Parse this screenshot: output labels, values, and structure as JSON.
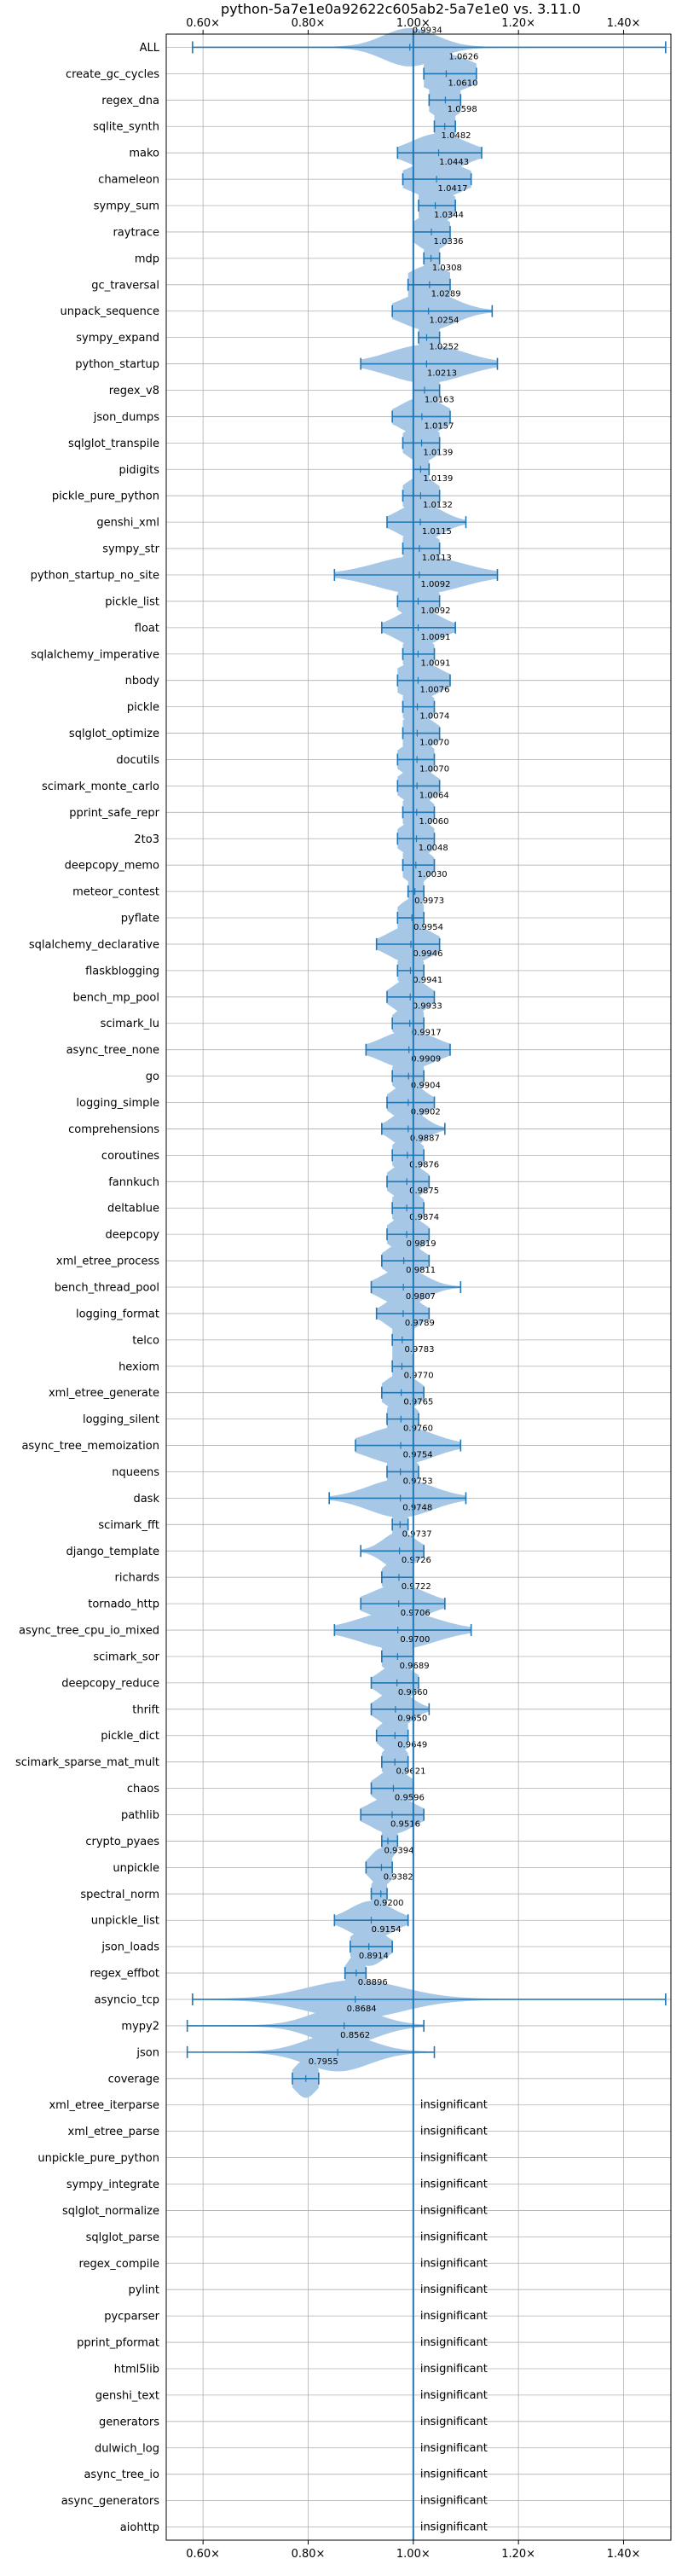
{
  "chart_data": {
    "type": "violin",
    "title": "python-5a7e1e0a92622c605ab2-5a7e1e0 vs. 3.11.0",
    "xlim": [
      0.53,
      1.49
    ],
    "x_ticks": [
      0.6,
      0.8,
      1.0,
      1.2,
      1.4
    ],
    "x_tick_labels": [
      "0.60×",
      "0.80×",
      "1.00×",
      "1.20×",
      "1.40×"
    ],
    "x_ticks_top_and_bottom": true,
    "grid": true,
    "reference_line": 1.0,
    "colors": {
      "violin": "#a6c8e6",
      "line": "#1f77b4",
      "grid": "#b0b0b0"
    },
    "insignificant_label": "insignificant",
    "benchmarks": [
      {
        "name": "ALL",
        "mean": 0.9934,
        "label": "0.9934",
        "min": 0.58,
        "max": 1.48,
        "spread": 0.05
      },
      {
        "name": "create_gc_cycles",
        "mean": 1.0626,
        "label": "1.0626",
        "min": 1.02,
        "max": 1.12,
        "spread": 0.05
      },
      {
        "name": "regex_dna",
        "mean": 1.061,
        "label": "1.0610",
        "min": 1.03,
        "max": 1.09,
        "spread": 0.03
      },
      {
        "name": "sqlite_synth",
        "mean": 1.0598,
        "label": "1.0598",
        "min": 1.04,
        "max": 1.08,
        "spread": 0.025
      },
      {
        "name": "mako",
        "mean": 1.0482,
        "label": "1.0482",
        "min": 0.97,
        "max": 1.13,
        "spread": 0.05
      },
      {
        "name": "chameleon",
        "mean": 1.0443,
        "label": "1.0443",
        "min": 0.98,
        "max": 1.11,
        "spread": 0.05
      },
      {
        "name": "sympy_sum",
        "mean": 1.0417,
        "label": "1.0417",
        "min": 1.01,
        "max": 1.08,
        "spread": 0.03
      },
      {
        "name": "raytrace",
        "mean": 1.0344,
        "label": "1.0344",
        "min": 1.0,
        "max": 1.07,
        "spread": 0.03
      },
      {
        "name": "mdp",
        "mean": 1.0336,
        "label": "1.0336",
        "min": 1.02,
        "max": 1.05,
        "spread": 0.015
      },
      {
        "name": "gc_traversal",
        "mean": 1.0308,
        "label": "1.0308",
        "min": 0.99,
        "max": 1.07,
        "spread": 0.04
      },
      {
        "name": "unpack_sequence",
        "mean": 1.0289,
        "label": "1.0289",
        "min": 0.96,
        "max": 1.15,
        "spread": 0.05
      },
      {
        "name": "sympy_expand",
        "mean": 1.0254,
        "label": "1.0254",
        "min": 1.01,
        "max": 1.05,
        "spread": 0.02
      },
      {
        "name": "python_startup",
        "mean": 1.0252,
        "label": "1.0252",
        "min": 0.9,
        "max": 1.16,
        "spread": 0.07
      },
      {
        "name": "regex_v8",
        "mean": 1.0213,
        "label": "1.0213",
        "min": 1.0,
        "max": 1.05,
        "spread": 0.025
      },
      {
        "name": "json_dumps",
        "mean": 1.0163,
        "label": "1.0163",
        "min": 0.96,
        "max": 1.07,
        "spread": 0.04
      },
      {
        "name": "sqlglot_transpile",
        "mean": 1.0157,
        "label": "1.0157",
        "min": 0.98,
        "max": 1.05,
        "spread": 0.03
      },
      {
        "name": "pidigits",
        "mean": 1.0139,
        "label": "1.0139",
        "min": 1.0,
        "max": 1.03,
        "spread": 0.015
      },
      {
        "name": "pickle_pure_python",
        "mean": 1.0139,
        "label": "1.0139",
        "min": 0.98,
        "max": 1.05,
        "spread": 0.03
      },
      {
        "name": "genshi_xml",
        "mean": 1.0132,
        "label": "1.0132",
        "min": 0.95,
        "max": 1.1,
        "spread": 0.04
      },
      {
        "name": "sympy_str",
        "mean": 1.0115,
        "label": "1.0115",
        "min": 0.98,
        "max": 1.05,
        "spread": 0.03
      },
      {
        "name": "python_startup_no_site",
        "mean": 1.0113,
        "label": "1.0113",
        "min": 0.85,
        "max": 1.16,
        "spread": 0.08
      },
      {
        "name": "pickle_list",
        "mean": 1.0092,
        "label": "1.0092",
        "min": 0.97,
        "max": 1.05,
        "spread": 0.03
      },
      {
        "name": "float",
        "mean": 1.0092,
        "label": "1.0092",
        "min": 0.94,
        "max": 1.08,
        "spread": 0.04
      },
      {
        "name": "sqlalchemy_imperative",
        "mean": 1.0091,
        "label": "1.0091",
        "min": 0.98,
        "max": 1.04,
        "spread": 0.025
      },
      {
        "name": "nbody",
        "mean": 1.0091,
        "label": "1.0091",
        "min": 0.97,
        "max": 1.07,
        "spread": 0.04
      },
      {
        "name": "pickle",
        "mean": 1.0076,
        "label": "1.0076",
        "min": 0.98,
        "max": 1.04,
        "spread": 0.025
      },
      {
        "name": "sqlglot_optimize",
        "mean": 1.0074,
        "label": "1.0074",
        "min": 0.98,
        "max": 1.05,
        "spread": 0.03
      },
      {
        "name": "docutils",
        "mean": 1.007,
        "label": "1.0070",
        "min": 0.97,
        "max": 1.04,
        "spread": 0.03
      },
      {
        "name": "scimark_monte_carlo",
        "mean": 1.007,
        "label": "1.0070",
        "min": 0.97,
        "max": 1.05,
        "spread": 0.03
      },
      {
        "name": "pprint_safe_repr",
        "mean": 1.0064,
        "label": "1.0064",
        "min": 0.98,
        "max": 1.04,
        "spread": 0.025
      },
      {
        "name": "2to3",
        "mean": 1.006,
        "label": "1.0060",
        "min": 0.97,
        "max": 1.04,
        "spread": 0.03
      },
      {
        "name": "deepcopy_memo",
        "mean": 1.0048,
        "label": "1.0048",
        "min": 0.98,
        "max": 1.04,
        "spread": 0.025
      },
      {
        "name": "meteor_contest",
        "mean": 1.003,
        "label": "1.0030",
        "min": 0.99,
        "max": 1.02,
        "spread": 0.015
      },
      {
        "name": "pyflate",
        "mean": 0.9973,
        "label": "0.9973",
        "min": 0.97,
        "max": 1.02,
        "spread": 0.025
      },
      {
        "name": "sqlalchemy_declarative",
        "mean": 0.9954,
        "label": "0.9954",
        "min": 0.93,
        "max": 1.05,
        "spread": 0.04
      },
      {
        "name": "flaskblogging",
        "mean": 0.9946,
        "label": "0.9946",
        "min": 0.97,
        "max": 1.02,
        "spread": 0.02
      },
      {
        "name": "bench_mp_pool",
        "mean": 0.9941,
        "label": "0.9941",
        "min": 0.95,
        "max": 1.04,
        "spread": 0.03
      },
      {
        "name": "scimark_lu",
        "mean": 0.9933,
        "label": "0.9933",
        "min": 0.96,
        "max": 1.02,
        "spread": 0.025
      },
      {
        "name": "async_tree_none",
        "mean": 0.9917,
        "label": "0.9917",
        "min": 0.91,
        "max": 1.07,
        "spread": 0.05
      },
      {
        "name": "go",
        "mean": 0.9909,
        "label": "0.9909",
        "min": 0.96,
        "max": 1.02,
        "spread": 0.025
      },
      {
        "name": "logging_simple",
        "mean": 0.9904,
        "label": "0.9904",
        "min": 0.95,
        "max": 1.04,
        "spread": 0.03
      },
      {
        "name": "comprehensions",
        "mean": 0.9902,
        "label": "0.9902",
        "min": 0.94,
        "max": 1.06,
        "spread": 0.03
      },
      {
        "name": "coroutines",
        "mean": 0.9887,
        "label": "0.9887",
        "min": 0.96,
        "max": 1.02,
        "spread": 0.025
      },
      {
        "name": "fannkuch",
        "mean": 0.9876,
        "label": "0.9876",
        "min": 0.95,
        "max": 1.03,
        "spread": 0.03
      },
      {
        "name": "deltablue",
        "mean": 0.9875,
        "label": "0.9875",
        "min": 0.96,
        "max": 1.02,
        "spread": 0.025
      },
      {
        "name": "deepcopy",
        "mean": 0.9874,
        "label": "0.9874",
        "min": 0.95,
        "max": 1.03,
        "spread": 0.03
      },
      {
        "name": "xml_etree_process",
        "mean": 0.9819,
        "label": "0.9819",
        "min": 0.94,
        "max": 1.03,
        "spread": 0.03
      },
      {
        "name": "bench_thread_pool",
        "mean": 0.9811,
        "label": "0.9811",
        "min": 0.92,
        "max": 1.09,
        "spread": 0.04
      },
      {
        "name": "logging_format",
        "mean": 0.9807,
        "label": "0.9807",
        "min": 0.93,
        "max": 1.03,
        "spread": 0.03
      },
      {
        "name": "telco",
        "mean": 0.9789,
        "label": "0.9789",
        "min": 0.96,
        "max": 1.0,
        "spread": 0.02
      },
      {
        "name": "hexiom",
        "mean": 0.9783,
        "label": "0.9783",
        "min": 0.96,
        "max": 1.0,
        "spread": 0.02
      },
      {
        "name": "xml_etree_generate",
        "mean": 0.977,
        "label": "0.9770",
        "min": 0.94,
        "max": 1.02,
        "spread": 0.03
      },
      {
        "name": "logging_silent",
        "mean": 0.9765,
        "label": "0.9765",
        "min": 0.95,
        "max": 1.01,
        "spread": 0.025
      },
      {
        "name": "async_tree_memoization",
        "mean": 0.976,
        "label": "0.9760",
        "min": 0.89,
        "max": 1.09,
        "spread": 0.06
      },
      {
        "name": "nqueens",
        "mean": 0.9754,
        "label": "0.9754",
        "min": 0.95,
        "max": 1.01,
        "spread": 0.025
      },
      {
        "name": "dask",
        "mean": 0.9753,
        "label": "0.9753",
        "min": 0.84,
        "max": 1.1,
        "spread": 0.06
      },
      {
        "name": "scimark_fft",
        "mean": 0.9748,
        "label": "0.9748",
        "min": 0.96,
        "max": 0.99,
        "spread": 0.015
      },
      {
        "name": "django_template",
        "mean": 0.9737,
        "label": "0.9737",
        "min": 0.9,
        "max": 1.02,
        "spread": 0.03
      },
      {
        "name": "richards",
        "mean": 0.9726,
        "label": "0.9726",
        "min": 0.94,
        "max": 1.0,
        "spread": 0.025
      },
      {
        "name": "tornado_http",
        "mean": 0.9722,
        "label": "0.9722",
        "min": 0.9,
        "max": 1.06,
        "spread": 0.05
      },
      {
        "name": "async_tree_cpu_io_mixed",
        "mean": 0.9706,
        "label": "0.9706",
        "min": 0.85,
        "max": 1.11,
        "spread": 0.07
      },
      {
        "name": "scimark_sor",
        "mean": 0.97,
        "label": "0.9700",
        "min": 0.94,
        "max": 1.0,
        "spread": 0.025
      },
      {
        "name": "deepcopy_reduce",
        "mean": 0.9689,
        "label": "0.9689",
        "min": 0.92,
        "max": 1.01,
        "spread": 0.03
      },
      {
        "name": "thrift",
        "mean": 0.966,
        "label": "0.9660",
        "min": 0.92,
        "max": 1.03,
        "spread": 0.03
      },
      {
        "name": "pickle_dict",
        "mean": 0.965,
        "label": "0.9650",
        "min": 0.93,
        "max": 0.99,
        "spread": 0.025
      },
      {
        "name": "scimark_sparse_mat_mult",
        "mean": 0.9649,
        "label": "0.9649",
        "min": 0.94,
        "max": 0.99,
        "spread": 0.02
      },
      {
        "name": "chaos",
        "mean": 0.9621,
        "label": "0.9621",
        "min": 0.92,
        "max": 1.0,
        "spread": 0.03
      },
      {
        "name": "pathlib",
        "mean": 0.9596,
        "label": "0.9596",
        "min": 0.9,
        "max": 1.02,
        "spread": 0.04
      },
      {
        "name": "crypto_pyaes",
        "mean": 0.9516,
        "label": "0.9516",
        "min": 0.94,
        "max": 0.97,
        "spread": 0.015
      },
      {
        "name": "unpickle",
        "mean": 0.9394,
        "label": "0.9394",
        "min": 0.91,
        "max": 0.96,
        "spread": 0.02
      },
      {
        "name": "spectral_norm",
        "mean": 0.9382,
        "label": "0.9382",
        "min": 0.92,
        "max": 0.95,
        "spread": 0.015
      },
      {
        "name": "unpickle_list",
        "mean": 0.92,
        "label": "0.9200",
        "min": 0.85,
        "max": 0.99,
        "spread": 0.04
      },
      {
        "name": "json_loads",
        "mean": 0.9154,
        "label": "0.9154",
        "min": 0.88,
        "max": 0.96,
        "spread": 0.03
      },
      {
        "name": "regex_effbot",
        "mean": 0.8914,
        "label": "0.8914",
        "min": 0.87,
        "max": 0.91,
        "spread": 0.015
      },
      {
        "name": "asyncio_tcp",
        "mean": 0.8896,
        "label": "0.8896",
        "min": 0.58,
        "max": 1.48,
        "spread": 0.09
      },
      {
        "name": "mypy2",
        "mean": 0.8684,
        "label": "0.8684",
        "min": 0.57,
        "max": 1.02,
        "spread": 0.06
      },
      {
        "name": "json",
        "mean": 0.8562,
        "label": "0.8562",
        "min": 0.57,
        "max": 1.04,
        "spread": 0.06
      },
      {
        "name": "coverage",
        "mean": 0.7955,
        "label": "0.7955",
        "min": 0.77,
        "max": 0.82,
        "spread": 0.02
      },
      {
        "name": "xml_etree_iterparse",
        "insignificant": true
      },
      {
        "name": "xml_etree_parse",
        "insignificant": true
      },
      {
        "name": "unpickle_pure_python",
        "insignificant": true
      },
      {
        "name": "sympy_integrate",
        "insignificant": true
      },
      {
        "name": "sqlglot_normalize",
        "insignificant": true
      },
      {
        "name": "sqlglot_parse",
        "insignificant": true
      },
      {
        "name": "regex_compile",
        "insignificant": true
      },
      {
        "name": "pylint",
        "insignificant": true
      },
      {
        "name": "pycparser",
        "insignificant": true
      },
      {
        "name": "pprint_pformat",
        "insignificant": true
      },
      {
        "name": "html5lib",
        "insignificant": true
      },
      {
        "name": "genshi_text",
        "insignificant": true
      },
      {
        "name": "generators",
        "insignificant": true
      },
      {
        "name": "dulwich_log",
        "insignificant": true
      },
      {
        "name": "async_tree_io",
        "insignificant": true
      },
      {
        "name": "async_generators",
        "insignificant": true
      },
      {
        "name": "aiohttp",
        "insignificant": true
      }
    ]
  }
}
